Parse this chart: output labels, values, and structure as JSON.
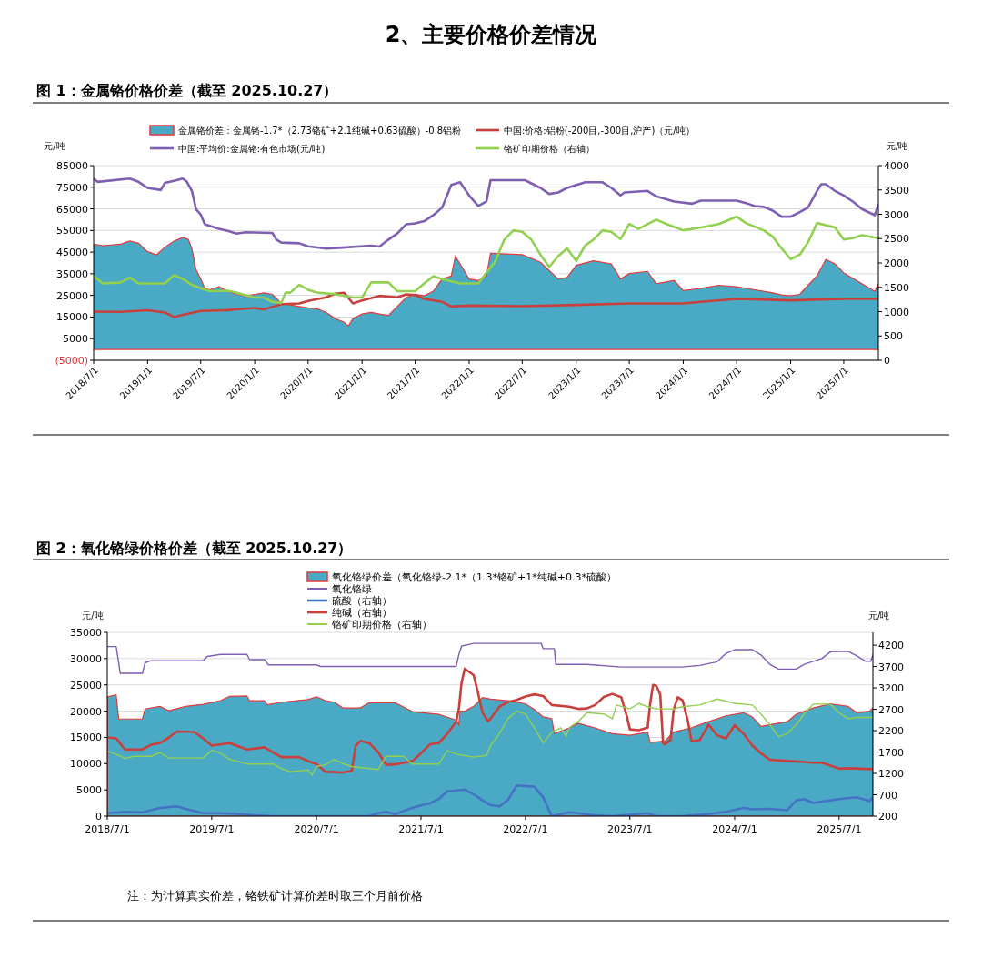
{
  "chart_data": [
    {
      "type": "line",
      "title": "图 1：金属铬价格价差（截至 2025.10.27）",
      "annotations": [
        "2、主要价格价差情况"
      ],
      "ylabel": "元/吨",
      "y2label": "元/吨",
      "legend": "top",
      "grid": "y",
      "xlim": [
        "2018-07-01",
        "2025-10-27"
      ],
      "xticks": [
        {
          "value": "2018-07-01",
          "label": "2018/7/1"
        },
        {
          "value": "2019-01-01",
          "label": "2019/1/1"
        },
        {
          "value": "2019-07-01",
          "label": "2019/7/1"
        },
        {
          "value": "2020-01-01",
          "label": "2020/1/1"
        },
        {
          "value": "2020-07-01",
          "label": "2020/7/1"
        },
        {
          "value": "2021-01-01",
          "label": "2021/1/1"
        },
        {
          "value": "2021-07-01",
          "label": "2021/7/1"
        },
        {
          "value": "2022-01-01",
          "label": "2022/1/1"
        },
        {
          "value": "2022-07-01",
          "label": "2022/7/1"
        },
        {
          "value": "2023-01-01",
          "label": "2023/1/1"
        },
        {
          "value": "2023-07-01",
          "label": "2023/7/1"
        },
        {
          "value": "2024-01-01",
          "label": "2024/1/1"
        },
        {
          "value": "2024-07-01",
          "label": "2024/7/1"
        },
        {
          "value": "2025-01-01",
          "label": "2025/1/1"
        },
        {
          "value": "2025-07-01",
          "label": "2025/7/1"
        }
      ],
      "ylim": [
        -5000,
        85000
      ],
      "yticks": [
        {
          "value": -5000,
          "label": "(5000)"
        },
        5000,
        15000,
        25000,
        35000,
        45000,
        55000,
        65000,
        75000,
        85000
      ],
      "y2lim": [
        0,
        4000
      ],
      "y2ticks": [
        0,
        500,
        1000,
        1500,
        2000,
        2500,
        3000,
        3500,
        4000
      ],
      "series": [
        {
          "name": "金属铬价差：金属铬-1.7*（2.73铬矿+2.1纯碱+0.63硫酸）-0.8铝粉",
          "type": "area",
          "color": "#4aaac6",
          "x": [
            "2018-07-01",
            "2018-08-01",
            "2018-10-01",
            "2018-11-01",
            "2018-12-01",
            "2019-01-01",
            "2019-02-01",
            "2019-03-01",
            "2019-04-01",
            "2019-05-01",
            "2019-05-20",
            "2019-06-01",
            "2019-06-15",
            "2019-07-01",
            "2019-07-15",
            "2019-08-01",
            "2019-09-01",
            "2019-10-01",
            "2019-11-01",
            "2019-12-01",
            "2020-01-01",
            "2020-02-01",
            "2020-03-01",
            "2020-04-01",
            "2020-05-01",
            "2020-06-01",
            "2020-07-01",
            "2020-08-01",
            "2020-09-01",
            "2020-10-01",
            "2020-11-01",
            "2020-11-15",
            "2020-12-01",
            "2021-01-01",
            "2021-02-01",
            "2021-03-01",
            "2021-04-01",
            "2021-05-01",
            "2021-06-01",
            "2021-07-01",
            "2021-08-01",
            "2021-09-01",
            "2021-10-01",
            "2021-11-01",
            "2021-11-15",
            "2021-12-01",
            "2022-01-01",
            "2022-02-01",
            "2022-03-01",
            "2022-03-15",
            "2022-07-01",
            "2022-09-01",
            "2022-11-01",
            "2022-12-01",
            "2023-01-01",
            "2023-03-01",
            "2023-05-01",
            "2023-06-01",
            "2023-07-01",
            "2023-09-01",
            "2023-10-01",
            "2023-12-01",
            "2024-01-01",
            "2024-03-01",
            "2024-05-01",
            "2024-07-01",
            "2024-09-01",
            "2024-11-01",
            "2024-12-01",
            "2025-01-01",
            "2025-02-01",
            "2025-03-01",
            "2025-04-01",
            "2025-05-01",
            "2025-06-01",
            "2025-07-01",
            "2025-09-01",
            "2025-10-15",
            "2025-10-27"
          ],
          "values": [
            48700,
            48000,
            48700,
            50100,
            49100,
            45200,
            43800,
            47300,
            50100,
            51800,
            50800,
            46600,
            36800,
            32600,
            28300,
            27600,
            29000,
            26900,
            25500,
            24800,
            25500,
            26200,
            25500,
            21300,
            20600,
            19900,
            19200,
            18800,
            17100,
            14300,
            12600,
            10800,
            14300,
            16400,
            17100,
            16400,
            15700,
            19900,
            24100,
            25500,
            24800,
            26900,
            32600,
            34000,
            43100,
            39600,
            32600,
            31900,
            34000,
            44500,
            43800,
            40300,
            32600,
            33300,
            38900,
            41000,
            39600,
            32600,
            35100,
            36100,
            30400,
            31900,
            27200,
            28300,
            29700,
            29000,
            27600,
            26200,
            25200,
            24800,
            25500,
            29700,
            34000,
            41700,
            39600,
            35400,
            30400,
            26900,
            30400
          ]
        },
        {
          "name": "中国:价格:铝粉(-200目,-300目,沪产)（元/吨）",
          "color": "#c8403c",
          "x": [
            "2018-07-01",
            "2018-10-01",
            "2019-01-01",
            "2019-03-01",
            "2019-04-01",
            "2019-05-01",
            "2019-07-01",
            "2019-10-01",
            "2020-01-01",
            "2020-02-01",
            "2020-04-01",
            "2020-06-01",
            "2020-07-01",
            "2020-09-01",
            "2020-10-01",
            "2020-11-01",
            "2020-12-01",
            "2021-01-01",
            "2021-03-01",
            "2021-05-01",
            "2021-06-01",
            "2021-07-01",
            "2021-08-01",
            "2021-10-01",
            "2021-11-01",
            "2022-01-01",
            "2022-07-01",
            "2023-01-01",
            "2023-07-01",
            "2024-01-01",
            "2024-07-01",
            "2025-01-01",
            "2025-07-01",
            "2025-10-27"
          ],
          "values": [
            17500,
            17400,
            18100,
            17100,
            15000,
            16000,
            17800,
            18200,
            19200,
            18500,
            21000,
            21300,
            22400,
            24100,
            25800,
            26200,
            21300,
            22700,
            24800,
            24100,
            25500,
            25200,
            23400,
            22000,
            19900,
            20300,
            20000,
            20600,
            21300,
            21300,
            23400,
            22700,
            23400,
            23400
          ]
        },
        {
          "name": "中国:平均价:金属铬:有色市场(元/吨)",
          "color": "#7e5fb2",
          "x": [
            "2018-07-01",
            "2018-07-15",
            "2018-11-01",
            "2018-12-01",
            "2019-01-01",
            "2019-02-15",
            "2019-03-01",
            "2019-04-01",
            "2019-05-01",
            "2019-05-15",
            "2019-06-01",
            "2019-06-15",
            "2019-07-01",
            "2019-07-15",
            "2019-09-01",
            "2019-10-01",
            "2019-11-01",
            "2019-12-01",
            "2020-03-01",
            "2020-03-15",
            "2020-04-01",
            "2020-06-01",
            "2020-07-01",
            "2020-09-01",
            "2020-10-15",
            "2021-02-01",
            "2021-03-01",
            "2021-04-01",
            "2021-05-01",
            "2021-06-01",
            "2021-07-01",
            "2021-08-01",
            "2021-09-01",
            "2021-10-01",
            "2021-11-01",
            "2021-12-01",
            "2022-01-01",
            "2022-02-01",
            "2022-03-01",
            "2022-03-15",
            "2022-07-10",
            "2022-08-01",
            "2022-09-01",
            "2022-10-01",
            "2022-11-01",
            "2022-12-01",
            "2023-02-01",
            "2023-04-01",
            "2023-05-01",
            "2023-06-01",
            "2023-06-15",
            "2023-09-01",
            "2023-10-01",
            "2023-12-01",
            "2024-02-01",
            "2024-03-01",
            "2024-07-01",
            "2024-08-01",
            "2024-09-01",
            "2024-10-01",
            "2024-11-01",
            "2024-12-01",
            "2025-01-01",
            "2025-02-01",
            "2025-03-01",
            "2025-04-01",
            "2025-04-15",
            "2025-05-01",
            "2025-06-01",
            "2025-07-01",
            "2025-08-01",
            "2025-09-01",
            "2025-10-15",
            "2025-10-27"
          ],
          "values": [
            78900,
            77500,
            79000,
            77500,
            74700,
            73700,
            77000,
            78000,
            79000,
            77500,
            73300,
            64900,
            62400,
            57900,
            55800,
            54800,
            53600,
            54200,
            53900,
            50800,
            49400,
            49100,
            47700,
            46600,
            47000,
            48000,
            47600,
            50800,
            53600,
            57900,
            58300,
            59300,
            62100,
            65600,
            76100,
            77300,
            71200,
            66300,
            68400,
            78300,
            78300,
            76800,
            74700,
            71900,
            72600,
            74700,
            77300,
            77300,
            74700,
            71200,
            72600,
            73300,
            70800,
            68400,
            67400,
            68800,
            68800,
            67700,
            66300,
            65900,
            64200,
            61400,
            61400,
            63500,
            65600,
            73300,
            76400,
            76400,
            73300,
            71200,
            68400,
            64900,
            62100,
            67000
          ]
        },
        {
          "name": "铬矿印期价格（右轴）",
          "axis": "y2",
          "color": "#92d050",
          "x": [
            "2018-07-01",
            "2018-08-01",
            "2018-10-01",
            "2018-11-01",
            "2018-12-01",
            "2019-03-01",
            "2019-04-01",
            "2019-05-01",
            "2019-06-01",
            "2019-07-01",
            "2019-08-01",
            "2019-10-01",
            "2019-11-01",
            "2020-01-01",
            "2020-02-01",
            "2020-03-01",
            "2020-04-01",
            "2020-04-15",
            "2020-05-01",
            "2020-06-01",
            "2020-07-01",
            "2020-08-01",
            "2020-10-01",
            "2020-12-01",
            "2021-01-01",
            "2021-02-01",
            "2021-04-01",
            "2021-05-01",
            "2021-07-01",
            "2021-08-01",
            "2021-09-01",
            "2021-10-01",
            "2021-12-01",
            "2022-02-01",
            "2022-03-01",
            "2022-04-01",
            "2022-05-01",
            "2022-06-01",
            "2022-07-01",
            "2022-08-01",
            "2022-09-01",
            "2022-10-01",
            "2022-11-01",
            "2022-12-01",
            "2023-01-01",
            "2023-02-01",
            "2023-03-01",
            "2023-04-01",
            "2023-05-01",
            "2023-06-01",
            "2023-07-01",
            "2023-08-01",
            "2023-10-01",
            "2023-11-01",
            "2024-01-01",
            "2024-03-01",
            "2024-05-01",
            "2024-07-01",
            "2024-08-01",
            "2024-10-01",
            "2024-11-01",
            "2024-12-01",
            "2025-01-01",
            "2025-02-01",
            "2025-03-01",
            "2025-04-01",
            "2025-06-01",
            "2025-07-01",
            "2025-08-01",
            "2025-09-01",
            "2025-10-27"
          ],
          "values": [
            1730,
            1580,
            1600,
            1700,
            1580,
            1580,
            1750,
            1670,
            1550,
            1480,
            1420,
            1430,
            1390,
            1290,
            1290,
            1200,
            1180,
            1390,
            1390,
            1550,
            1450,
            1390,
            1360,
            1290,
            1290,
            1600,
            1600,
            1420,
            1420,
            1580,
            1730,
            1670,
            1580,
            1580,
            1800,
            2040,
            2480,
            2670,
            2640,
            2480,
            2170,
            1920,
            2140,
            2300,
            2040,
            2360,
            2480,
            2670,
            2640,
            2490,
            2800,
            2700,
            2890,
            2810,
            2670,
            2730,
            2800,
            2950,
            2820,
            2670,
            2540,
            2300,
            2080,
            2170,
            2420,
            2820,
            2730,
            2480,
            2510,
            2570,
            2510
          ]
        }
      ]
    },
    {
      "type": "line",
      "title": "图 2：氧化铬绿价格价差（截至 2025.10.27）",
      "annotations": [
        "注：为计算真实价差，铬铁矿计算价差时取三个月前价格"
      ],
      "ylabel": "元/吨",
      "y2label": "元/吨",
      "legend": "top",
      "grid": "y",
      "xlim": [
        "2018-07-01",
        "2025-10-27"
      ],
      "xticks": [
        {
          "value": "2018-07-01",
          "label": "2018/7/1"
        },
        {
          "value": "2019-07-01",
          "label": "2019/7/1"
        },
        {
          "value": "2020-07-01",
          "label": "2020/7/1"
        },
        {
          "value": "2021-07-01",
          "label": "2021/7/1"
        },
        {
          "value": "2022-07-01",
          "label": "2022/7/1"
        },
        {
          "value": "2023-07-01",
          "label": "2023/7/1"
        },
        {
          "value": "2024-07-01",
          "label": "2024/7/1"
        },
        {
          "value": "2025-07-01",
          "label": "2025/7/1"
        }
      ],
      "ylim": [
        0,
        35000
      ],
      "yticks": [
        0,
        5000,
        10000,
        15000,
        20000,
        25000,
        30000,
        35000
      ],
      "y2lim": [
        200,
        4500
      ],
      "y2ticks": [
        200,
        700,
        1200,
        1700,
        2200,
        2700,
        3200,
        3700,
        4200
      ],
      "series": [
        {
          "name": "氧化铬绿价差（氧化铬绿-2.1*（1.3*铬矿+1*纯碱+0.3*硫酸）",
          "type": "area",
          "color": "#4aaac6",
          "x": [
            "2018-07-01",
            "2018-08-01",
            "2018-08-10",
            "2018-11-01",
            "2018-11-10",
            "2019-01-01",
            "2019-02-01",
            "2019-04-01",
            "2019-06-01",
            "2019-08-01",
            "2019-09-01",
            "2019-11-01",
            "2019-11-10",
            "2020-01-01",
            "2020-01-10",
            "2020-03-01",
            "2020-06-01",
            "2020-07-01",
            "2020-08-01",
            "2020-09-01",
            "2020-10-01",
            "2020-12-01",
            "2021-01-01",
            "2021-04-01",
            "2021-06-01",
            "2021-09-01",
            "2021-11-01",
            "2021-11-10",
            "2021-11-15",
            "2021-12-01",
            "2022-01-01",
            "2022-02-01",
            "2022-03-01",
            "2022-05-01",
            "2022-07-01",
            "2022-08-01",
            "2022-09-01",
            "2022-10-01",
            "2022-10-10",
            "2022-12-01",
            "2023-01-01",
            "2023-03-01",
            "2023-05-01",
            "2023-07-01",
            "2023-09-01",
            "2023-09-10",
            "2023-11-01",
            "2023-12-01",
            "2024-02-01",
            "2024-04-01",
            "2024-06-01",
            "2024-08-01",
            "2024-09-01",
            "2024-10-01",
            "2024-11-01",
            "2025-01-01",
            "2025-02-01",
            "2025-04-01",
            "2025-06-01",
            "2025-08-01",
            "2025-09-01",
            "2025-10-15",
            "2025-10-27"
          ],
          "values": [
            22700,
            23100,
            18500,
            18500,
            20400,
            20900,
            20100,
            20900,
            21300,
            22000,
            22800,
            22900,
            22000,
            22000,
            21200,
            21700,
            22200,
            22700,
            22000,
            21700,
            20600,
            20600,
            21600,
            21600,
            19900,
            19400,
            18300,
            17400,
            20000,
            20000,
            20900,
            22600,
            22300,
            22000,
            21400,
            20300,
            18900,
            18600,
            15700,
            16800,
            17700,
            16800,
            15700,
            15400,
            16000,
            14000,
            14300,
            16000,
            16800,
            18000,
            19100,
            19700,
            18900,
            17100,
            17400,
            18000,
            19400,
            20600,
            21400,
            20900,
            19700,
            20000,
            20600
          ]
        },
        {
          "name": "氧化铬绿",
          "color": "#7e5fb2",
          "x": [
            "2018-07-01",
            "2018-08-01",
            "2018-08-10",
            "2018-08-15",
            "2018-11-01",
            "2018-11-10",
            "2018-12-01",
            "2019-06-01",
            "2019-06-15",
            "2019-08-01",
            "2019-11-01",
            "2019-11-10",
            "2020-01-01",
            "2020-01-15",
            "2020-07-01",
            "2020-07-15",
            "2021-11-01",
            "2021-11-10",
            "2021-11-20",
            "2022-01-01",
            "2022-08-25",
            "2022-09-01",
            "2022-10-10",
            "2022-10-15",
            "2023-02-01",
            "2023-06-01",
            "2024-01-01",
            "2024-03-01",
            "2024-05-01",
            "2024-06-01",
            "2024-07-01",
            "2024-09-01",
            "2024-10-01",
            "2024-11-01",
            "2024-12-01",
            "2025-02-01",
            "2025-03-01",
            "2025-05-01",
            "2025-06-01",
            "2025-08-01",
            "2025-09-01",
            "2025-10-01",
            "2025-10-20",
            "2025-10-27"
          ],
          "values": [
            32300,
            32300,
            29200,
            27200,
            27200,
            29200,
            29600,
            29600,
            30400,
            30800,
            30800,
            29800,
            29800,
            28800,
            28800,
            28500,
            28500,
            30700,
            32400,
            32900,
            32900,
            31900,
            31900,
            28900,
            28900,
            28400,
            28400,
            28700,
            29400,
            31000,
            31700,
            31700,
            30700,
            28900,
            28000,
            28000,
            28900,
            30000,
            31300,
            31400,
            30500,
            29500,
            29500,
            30700
          ]
        },
        {
          "name": "硫酸（右轴）",
          "axis": "y2",
          "color": "#4472c4",
          "x": [
            "2018-07-01",
            "2018-09-01",
            "2018-11-01",
            "2019-01-01",
            "2019-03-01",
            "2019-04-01",
            "2019-06-01",
            "2019-08-01",
            "2019-10-01",
            "2019-12-01",
            "2020-02-01",
            "2021-01-01",
            "2021-02-01",
            "2021-03-01",
            "2021-04-01",
            "2021-05-01",
            "2021-06-01",
            "2021-07-01",
            "2021-08-01",
            "2021-09-01",
            "2021-10-01",
            "2021-12-01",
            "2022-01-01",
            "2022-02-01",
            "2022-03-01",
            "2022-04-01",
            "2022-05-01",
            "2022-06-01",
            "2022-08-01",
            "2022-09-01",
            "2022-10-01",
            "2022-12-01",
            "2023-01-01",
            "2023-03-01",
            "2023-05-01",
            "2023-09-01",
            "2023-10-01",
            "2024-01-01",
            "2024-04-01",
            "2024-06-01",
            "2024-08-01",
            "2024-09-01",
            "2024-11-01",
            "2025-01-01",
            "2025-02-01",
            "2025-03-01",
            "2025-04-01",
            "2025-06-01",
            "2025-07-01",
            "2025-09-01",
            "2025-10-15",
            "2025-10-27"
          ],
          "values": [
            270,
            300,
            290,
            390,
            430,
            370,
            270,
            270,
            250,
            220,
            200,
            200,
            270,
            300,
            250,
            320,
            390,
            450,
            500,
            600,
            780,
            820,
            710,
            570,
            460,
            430,
            580,
            920,
            890,
            640,
            200,
            290,
            270,
            220,
            200,
            270,
            200,
            200,
            250,
            300,
            390,
            360,
            370,
            340,
            570,
            600,
            510,
            570,
            600,
            640,
            550,
            650
          ]
        },
        {
          "name": "纯碱（右轴）",
          "axis": "y2",
          "color": "#c8403c",
          "x": [
            "2018-07-01",
            "2018-08-01",
            "2018-09-01",
            "2018-11-01",
            "2018-12-01",
            "2019-01-01",
            "2019-02-01",
            "2019-03-01",
            "2019-05-01",
            "2019-06-01",
            "2019-07-01",
            "2019-09-01",
            "2019-11-01",
            "2020-01-01",
            "2020-02-01",
            "2020-03-01",
            "2020-05-01",
            "2020-06-01",
            "2020-07-01",
            "2020-08-01",
            "2020-10-01",
            "2020-11-01",
            "2020-11-15",
            "2020-12-01",
            "2021-01-01",
            "2021-02-01",
            "2021-03-01",
            "2021-04-01",
            "2021-06-01",
            "2021-07-01",
            "2021-08-01",
            "2021-09-01",
            "2021-10-01",
            "2021-11-01",
            "2021-11-10",
            "2021-11-20",
            "2021-12-01",
            "2022-01-01",
            "2022-01-15",
            "2022-02-01",
            "2022-02-20",
            "2022-03-01",
            "2022-04-01",
            "2022-05-01",
            "2022-06-01",
            "2022-07-01",
            "2022-08-01",
            "2022-09-01",
            "2022-10-01",
            "2022-12-01",
            "2023-01-01",
            "2023-02-01",
            "2023-03-01",
            "2023-04-01",
            "2023-05-01",
            "2023-06-01",
            "2023-06-20",
            "2023-07-01",
            "2023-08-01",
            "2023-09-01",
            "2023-09-10",
            "2023-09-20",
            "2023-10-01",
            "2023-10-15",
            "2023-10-25",
            "2023-11-01",
            "2023-11-20",
            "2023-12-01",
            "2023-12-15",
            "2024-01-01",
            "2024-01-20",
            "2024-02-01",
            "2024-03-01",
            "2024-04-01",
            "2024-05-01",
            "2024-06-01",
            "2024-07-01",
            "2024-08-01",
            "2024-09-01",
            "2024-10-01",
            "2024-11-01",
            "2025-01-01",
            "2025-02-01",
            "2025-04-01",
            "2025-05-01",
            "2025-06-01",
            "2025-07-01",
            "2025-08-01",
            "2025-10-27"
          ],
          "values": [
            2040,
            2020,
            1760,
            1760,
            1870,
            1910,
            2040,
            2180,
            2170,
            2020,
            1850,
            1910,
            1760,
            1810,
            1690,
            1580,
            1580,
            1490,
            1420,
            1240,
            1220,
            1260,
            1850,
            1960,
            1910,
            1700,
            1400,
            1410,
            1490,
            1670,
            1880,
            1910,
            2130,
            2410,
            2690,
            3330,
            3650,
            3500,
            3120,
            2620,
            2420,
            2480,
            2760,
            2870,
            2920,
            3000,
            3050,
            3010,
            2800,
            2760,
            2710,
            2720,
            2800,
            2990,
            3060,
            2980,
            2550,
            2230,
            2210,
            2270,
            2840,
            3270,
            3250,
            3050,
            1910,
            1880,
            1980,
            2690,
            2980,
            2910,
            2410,
            1950,
            1980,
            2340,
            2090,
            2020,
            2330,
            2130,
            1850,
            1670,
            1520,
            1490,
            1480,
            1450,
            1450,
            1380,
            1310,
            1320,
            1300
          ]
        },
        {
          "name": "铬矿印期价格（右轴）",
          "axis": "y2",
          "color": "#92d050",
          "x": [
            "2018-07-01",
            "2018-08-01",
            "2018-09-01",
            "2018-10-01",
            "2018-12-01",
            "2019-01-01",
            "2019-02-01",
            "2019-06-01",
            "2019-07-01",
            "2019-08-01",
            "2019-09-01",
            "2019-10-01",
            "2019-11-01",
            "2020-02-01",
            "2020-03-01",
            "2020-04-01",
            "2020-06-01",
            "2020-06-15",
            "2020-07-01",
            "2020-08-01",
            "2020-09-01",
            "2020-10-01",
            "2020-11-01",
            "2021-02-01",
            "2021-03-01",
            "2021-05-01",
            "2021-06-01",
            "2021-09-01",
            "2021-10-01",
            "2021-11-01",
            "2022-01-01",
            "2022-02-15",
            "2022-03-01",
            "2022-04-01",
            "2022-05-01",
            "2022-06-01",
            "2022-07-01",
            "2022-08-01",
            "2022-09-01",
            "2022-10-01",
            "2022-11-01",
            "2022-11-20",
            "2022-12-01",
            "2023-01-01",
            "2023-02-01",
            "2023-04-01",
            "2023-05-01",
            "2023-05-15",
            "2023-07-01",
            "2023-08-01",
            "2023-09-01",
            "2023-10-01",
            "2023-12-01",
            "2024-01-01",
            "2024-03-01",
            "2024-05-01",
            "2024-07-01",
            "2024-09-01",
            "2024-10-01",
            "2024-11-01",
            "2024-12-01",
            "2025-01-01",
            "2025-02-01",
            "2025-03-01",
            "2025-04-01",
            "2025-06-01",
            "2025-07-01",
            "2025-08-01",
            "2025-09-01",
            "2025-10-27"
          ],
          "values": [
            1720,
            1650,
            1550,
            1600,
            1600,
            1690,
            1560,
            1560,
            1740,
            1670,
            1530,
            1480,
            1420,
            1420,
            1310,
            1240,
            1280,
            1160,
            1360,
            1400,
            1530,
            1430,
            1360,
            1290,
            1600,
            1600,
            1420,
            1420,
            1730,
            1650,
            1580,
            1620,
            1850,
            2130,
            2480,
            2660,
            2590,
            2270,
            1910,
            2160,
            2270,
            2060,
            2270,
            2410,
            2620,
            2590,
            2480,
            2800,
            2710,
            2840,
            2760,
            2710,
            2710,
            2760,
            2800,
            2940,
            2840,
            2800,
            2590,
            2340,
            2060,
            2130,
            2340,
            2590,
            2820,
            2820,
            2620,
            2480,
            2510,
            2510
          ]
        }
      ]
    }
  ]
}
